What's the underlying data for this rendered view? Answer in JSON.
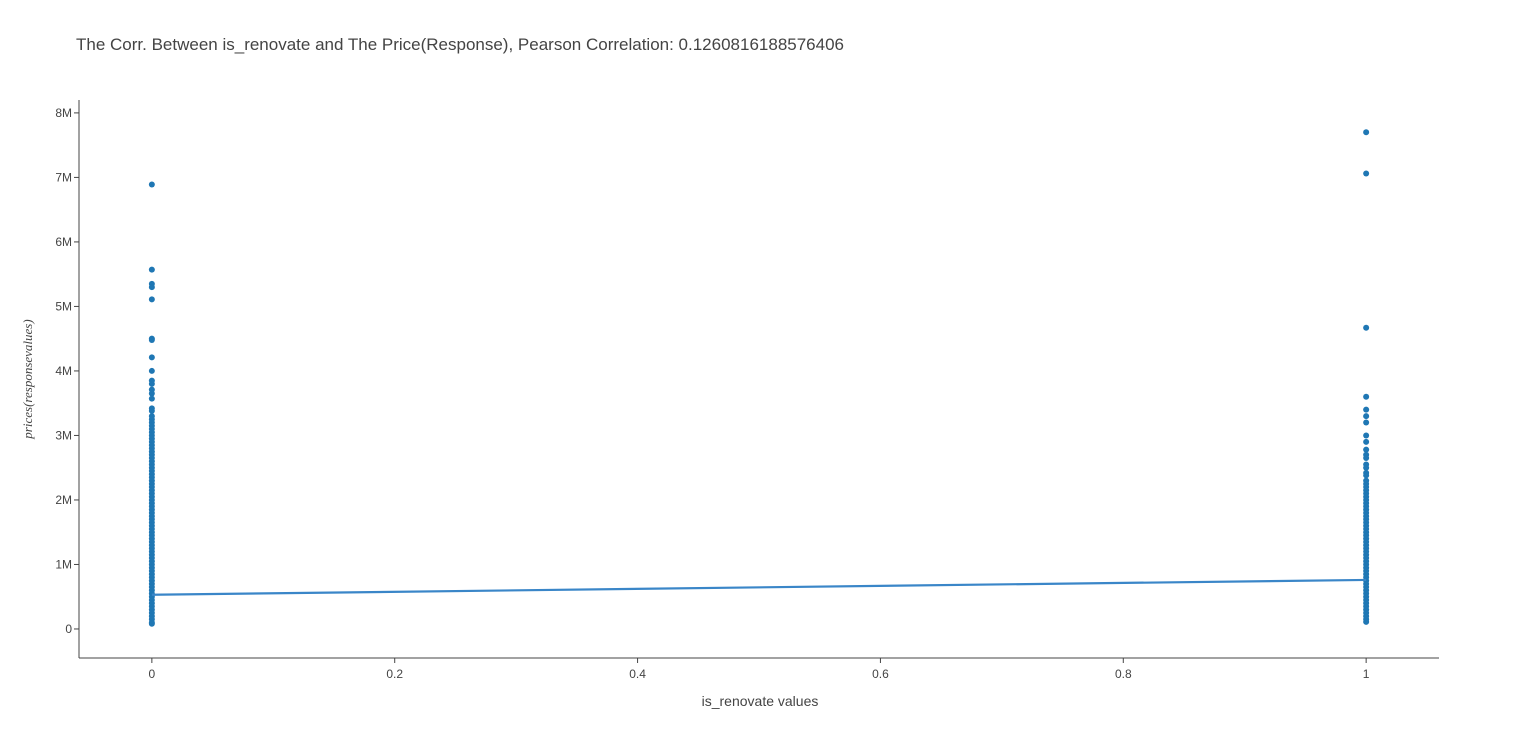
{
  "chart_data": {
    "type": "scatter",
    "title": "The Corr. Between is_renovate and The Price(Response), Pearson Correlation: 0.1260816188576406",
    "xlabel": "is_renovate values",
    "ylabel": "prices(responsevalues)",
    "xlim": [
      -0.06,
      1.06
    ],
    "ylim": [
      -450000,
      8200000
    ],
    "x_ticks": [
      0,
      0.2,
      0.4,
      0.6,
      0.8,
      1
    ],
    "x_tick_labels": [
      "0",
      "0.2",
      "0.4",
      "0.6",
      "0.8",
      "1"
    ],
    "y_ticks": [
      0,
      1000000,
      2000000,
      3000000,
      4000000,
      5000000,
      6000000,
      7000000,
      8000000
    ],
    "y_tick_labels": [
      "0",
      "1M",
      "2M",
      "3M",
      "4M",
      "5M",
      "6M",
      "7M",
      "8M"
    ],
    "grid": false,
    "colors": {
      "points": "#1f77b4",
      "trendline": "#3a86c8",
      "axis": "#444444"
    },
    "series": [
      {
        "kind": "points",
        "points": [
          [
            0,
            6890000
          ],
          [
            0,
            5570000
          ],
          [
            0,
            5350000
          ],
          [
            0,
            5300000
          ],
          [
            0,
            5110000
          ],
          [
            0,
            4500000
          ],
          [
            0,
            4480000
          ],
          [
            0,
            4210000
          ],
          [
            0,
            4000000
          ],
          [
            0,
            3850000
          ],
          [
            0,
            3800000
          ],
          [
            0,
            3710000
          ],
          [
            0,
            3650000
          ],
          [
            0,
            3570000
          ],
          [
            0,
            3420000
          ],
          [
            0,
            3380000
          ],
          [
            0,
            3300000
          ],
          [
            0,
            3250000
          ],
          [
            0,
            3200000
          ],
          [
            0,
            3150000
          ],
          [
            0,
            3100000
          ],
          [
            0,
            3050000
          ],
          [
            0,
            3000000
          ],
          [
            0,
            2950000
          ],
          [
            0,
            2900000
          ],
          [
            0,
            2850000
          ],
          [
            0,
            2800000
          ],
          [
            0,
            2750000
          ],
          [
            0,
            2700000
          ],
          [
            0,
            2650000
          ],
          [
            0,
            2600000
          ],
          [
            0,
            2550000
          ],
          [
            0,
            2500000
          ],
          [
            0,
            2450000
          ],
          [
            0,
            2400000
          ],
          [
            0,
            2350000
          ],
          [
            0,
            2300000
          ],
          [
            0,
            2250000
          ],
          [
            0,
            2200000
          ],
          [
            0,
            2150000
          ],
          [
            0,
            2100000
          ],
          [
            0,
            2050000
          ],
          [
            0,
            2000000
          ],
          [
            0,
            1950000
          ],
          [
            0,
            1900000
          ],
          [
            0,
            1850000
          ],
          [
            0,
            1800000
          ],
          [
            0,
            1750000
          ],
          [
            0,
            1700000
          ],
          [
            0,
            1650000
          ],
          [
            0,
            1600000
          ],
          [
            0,
            1550000
          ],
          [
            0,
            1500000
          ],
          [
            0,
            1450000
          ],
          [
            0,
            1400000
          ],
          [
            0,
            1350000
          ],
          [
            0,
            1300000
          ],
          [
            0,
            1250000
          ],
          [
            0,
            1200000
          ],
          [
            0,
            1150000
          ],
          [
            0,
            1100000
          ],
          [
            0,
            1050000
          ],
          [
            0,
            1000000
          ],
          [
            0,
            950000
          ],
          [
            0,
            900000
          ],
          [
            0,
            850000
          ],
          [
            0,
            800000
          ],
          [
            0,
            750000
          ],
          [
            0,
            700000
          ],
          [
            0,
            650000
          ],
          [
            0,
            600000
          ],
          [
            0,
            550000
          ],
          [
            0,
            500000
          ],
          [
            0,
            450000
          ],
          [
            0,
            400000
          ],
          [
            0,
            350000
          ],
          [
            0,
            300000
          ],
          [
            0,
            250000
          ],
          [
            0,
            200000
          ],
          [
            0,
            150000
          ],
          [
            0,
            100000
          ],
          [
            0,
            80000
          ],
          [
            1,
            7700000
          ],
          [
            1,
            7060000
          ],
          [
            1,
            4670000
          ],
          [
            1,
            3600000
          ],
          [
            1,
            3400000
          ],
          [
            1,
            3300000
          ],
          [
            1,
            3200000
          ],
          [
            1,
            3000000
          ],
          [
            1,
            2900000
          ],
          [
            1,
            2780000
          ],
          [
            1,
            2700000
          ],
          [
            1,
            2650000
          ],
          [
            1,
            2550000
          ],
          [
            1,
            2500000
          ],
          [
            1,
            2420000
          ],
          [
            1,
            2380000
          ],
          [
            1,
            2300000
          ],
          [
            1,
            2250000
          ],
          [
            1,
            2200000
          ],
          [
            1,
            2150000
          ],
          [
            1,
            2100000
          ],
          [
            1,
            2050000
          ],
          [
            1,
            2000000
          ],
          [
            1,
            1950000
          ],
          [
            1,
            1900000
          ],
          [
            1,
            1850000
          ],
          [
            1,
            1800000
          ],
          [
            1,
            1750000
          ],
          [
            1,
            1700000
          ],
          [
            1,
            1650000
          ],
          [
            1,
            1600000
          ],
          [
            1,
            1550000
          ],
          [
            1,
            1500000
          ],
          [
            1,
            1450000
          ],
          [
            1,
            1400000
          ],
          [
            1,
            1350000
          ],
          [
            1,
            1300000
          ],
          [
            1,
            1250000
          ],
          [
            1,
            1200000
          ],
          [
            1,
            1150000
          ],
          [
            1,
            1100000
          ],
          [
            1,
            1050000
          ],
          [
            1,
            1000000
          ],
          [
            1,
            950000
          ],
          [
            1,
            900000
          ],
          [
            1,
            850000
          ],
          [
            1,
            800000
          ],
          [
            1,
            750000
          ],
          [
            1,
            700000
          ],
          [
            1,
            650000
          ],
          [
            1,
            600000
          ],
          [
            1,
            550000
          ],
          [
            1,
            500000
          ],
          [
            1,
            450000
          ],
          [
            1,
            400000
          ],
          [
            1,
            350000
          ],
          [
            1,
            300000
          ],
          [
            1,
            250000
          ],
          [
            1,
            200000
          ],
          [
            1,
            150000
          ],
          [
            1,
            110000
          ]
        ]
      },
      {
        "kind": "trendline",
        "x": [
          0,
          1
        ],
        "y": [
          530000,
          760000
        ]
      }
    ]
  }
}
